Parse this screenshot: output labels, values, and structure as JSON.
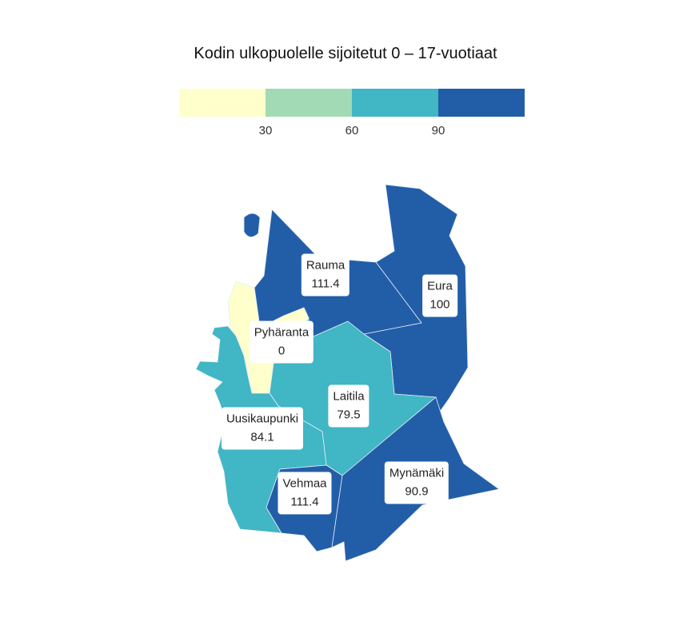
{
  "title": "Kodin ulkopuolelle sijoitetut 0 – 17-vuotiaat",
  "legend": {
    "colors": [
      "#ffffcc",
      "#a1dab4",
      "#41b6c4",
      "#225ea8"
    ],
    "thresholds": [
      "30",
      "60",
      "90"
    ]
  },
  "map_data": {
    "regions": [
      {
        "name": "Rauma",
        "value": "111.4",
        "class_color": "#225ea8"
      },
      {
        "name": "Eura",
        "value": "100",
        "class_color": "#225ea8"
      },
      {
        "name": "Pyhäranta",
        "value": "0",
        "class_color": "#ffffcc"
      },
      {
        "name": "Laitila",
        "value": "79.5",
        "class_color": "#41b6c4"
      },
      {
        "name": "Uusikaupunki",
        "value": "84.1",
        "class_color": "#41b6c4"
      },
      {
        "name": "Vehmaa",
        "value": "111.4",
        "class_color": "#225ea8"
      },
      {
        "name": "Mynämäki",
        "value": "90.9",
        "class_color": "#225ea8"
      }
    ]
  }
}
